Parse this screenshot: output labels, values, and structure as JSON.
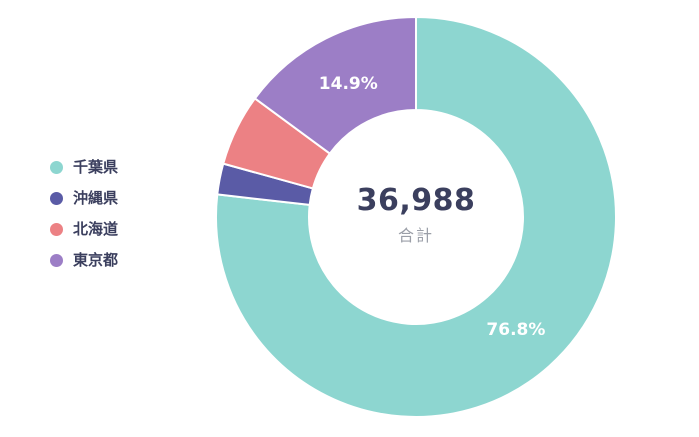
{
  "chart_data": {
    "type": "pie",
    "donut": true,
    "title": "",
    "center_value": "36,988",
    "center_label": "合計",
    "total": 36988,
    "legend_position": "left",
    "grid": false,
    "segments": [
      {
        "label": "千葉県",
        "percent": 76.8,
        "color": "#8dd6d0",
        "percent_label": "76.8%"
      },
      {
        "label": "沖縄県",
        "percent": 2.5,
        "color": "#5a5ba6",
        "percent_label": ""
      },
      {
        "label": "北海道",
        "percent": 5.8,
        "color": "#ec8184",
        "percent_label": ""
      },
      {
        "label": "東京都",
        "percent": 14.9,
        "color": "#9c7ec6",
        "percent_label": "14.9%"
      }
    ]
  }
}
